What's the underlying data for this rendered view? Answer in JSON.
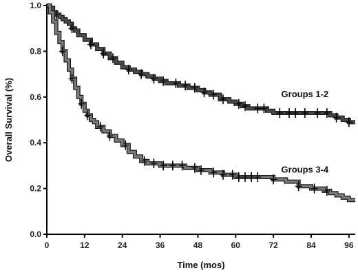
{
  "chart_data": {
    "type": "line",
    "title": "",
    "xlabel": "Time (mos)",
    "ylabel": "Overall Survival (%)",
    "xlim": [
      0,
      98
    ],
    "ylim": [
      0,
      1.0
    ],
    "x_ticks": [
      0,
      12,
      24,
      36,
      48,
      60,
      72,
      84,
      96
    ],
    "y_ticks": [
      0.0,
      0.2,
      0.4,
      0.6,
      0.8,
      1.0
    ],
    "x_tick_labels": [
      "0",
      "12",
      "24",
      "36",
      "48",
      "60",
      "72",
      "84",
      "96"
    ],
    "y_tick_labels": [
      "0.0",
      "0.2",
      "0.4",
      "0.6",
      "0.8",
      "1.0"
    ],
    "grid": false,
    "legend": "none",
    "series": [
      {
        "name": "Groups 1-2",
        "color": "#4a4a4a",
        "x": [
          0,
          1,
          2,
          3,
          4,
          5,
          6,
          7,
          8,
          9,
          10,
          12,
          14,
          16,
          18,
          20,
          22,
          24,
          26,
          28,
          30,
          32,
          34,
          36,
          38,
          40,
          42,
          45,
          48,
          50,
          52,
          55,
          58,
          60,
          62,
          64,
          66,
          68,
          70,
          72,
          75,
          78,
          80,
          84,
          88,
          90,
          92,
          94,
          96,
          98
        ],
        "y": [
          1.0,
          0.99,
          0.97,
          0.96,
          0.95,
          0.94,
          0.93,
          0.92,
          0.9,
          0.89,
          0.87,
          0.85,
          0.83,
          0.81,
          0.79,
          0.77,
          0.75,
          0.73,
          0.72,
          0.71,
          0.7,
          0.69,
          0.68,
          0.67,
          0.66,
          0.66,
          0.65,
          0.64,
          0.63,
          0.62,
          0.61,
          0.59,
          0.58,
          0.57,
          0.56,
          0.55,
          0.55,
          0.55,
          0.54,
          0.53,
          0.53,
          0.53,
          0.53,
          0.53,
          0.53,
          0.52,
          0.51,
          0.5,
          0.49,
          0.49
        ],
        "censor_x": [
          3,
          8,
          14,
          18,
          21,
          26,
          30,
          34,
          37,
          41,
          44,
          47,
          50,
          53,
          56,
          61,
          63,
          67,
          69,
          74,
          77,
          79,
          82,
          86,
          89,
          92,
          96
        ]
      },
      {
        "name": "Groups 3-4",
        "color": "#7a7a7a",
        "x": [
          0,
          1,
          2,
          3,
          4,
          5,
          6,
          7,
          8,
          9,
          10,
          11,
          12,
          13,
          14,
          15,
          16,
          18,
          20,
          22,
          24,
          26,
          28,
          30,
          32,
          34,
          36,
          40,
          44,
          48,
          52,
          56,
          60,
          64,
          68,
          72,
          76,
          80,
          84,
          88,
          90,
          92,
          94,
          96,
          98
        ],
        "y": [
          1.0,
          0.97,
          0.93,
          0.88,
          0.84,
          0.8,
          0.76,
          0.72,
          0.68,
          0.64,
          0.6,
          0.57,
          0.54,
          0.52,
          0.5,
          0.49,
          0.47,
          0.45,
          0.43,
          0.41,
          0.39,
          0.36,
          0.34,
          0.32,
          0.31,
          0.31,
          0.3,
          0.3,
          0.29,
          0.28,
          0.27,
          0.26,
          0.25,
          0.25,
          0.25,
          0.24,
          0.23,
          0.21,
          0.2,
          0.19,
          0.18,
          0.17,
          0.16,
          0.15,
          0.15
        ],
        "censor_x": [
          5,
          8,
          11,
          13,
          17,
          20,
          25,
          31,
          34,
          37,
          40,
          43,
          47,
          49,
          53,
          56,
          59,
          61,
          63,
          65,
          67,
          72,
          80,
          85,
          89
        ]
      }
    ],
    "annotations": [
      {
        "text": "Groups 1-2",
        "x": 82,
        "y": 0.6
      },
      {
        "text": "Groups 3-4",
        "x": 82,
        "y": 0.27
      }
    ]
  }
}
